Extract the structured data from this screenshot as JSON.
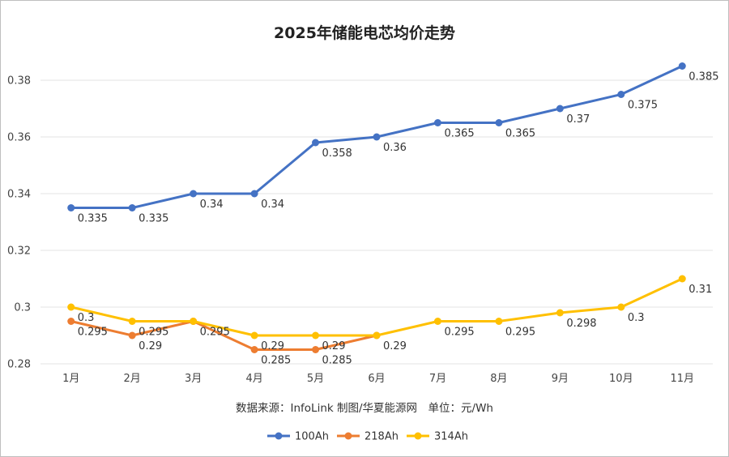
{
  "chart_data": {
    "type": "line",
    "title": "2025年储能电芯均价走势",
    "categories": [
      "1月",
      "2月",
      "3月",
      "4月",
      "5月",
      "6月",
      "7月",
      "8月",
      "9月",
      "10月",
      "11月"
    ],
    "series": [
      {
        "name": "100Ah",
        "color": "#4472C4",
        "values": [
          0.335,
          0.335,
          0.34,
          0.34,
          0.358,
          0.36,
          0.365,
          0.365,
          0.37,
          0.375,
          0.385
        ],
        "labels": [
          "0.335",
          "0.335",
          "0.34",
          "0.34",
          "0.358",
          "0.36",
          "0.365",
          "0.365",
          "0.37",
          "0.375",
          "0.385"
        ]
      },
      {
        "name": "218Ah",
        "color": "#ED7D31",
        "values": [
          0.295,
          0.29,
          0.295,
          0.285,
          0.285,
          0.29,
          null,
          null,
          null,
          null,
          null
        ],
        "labels": [
          "0.295",
          "0.29",
          "",
          "0.285",
          "0.285",
          "",
          "",
          "",
          "",
          "",
          ""
        ]
      },
      {
        "name": "314Ah",
        "color": "#FFC000",
        "values": [
          0.3,
          0.295,
          0.295,
          0.29,
          0.29,
          0.29,
          0.295,
          0.295,
          0.298,
          0.3,
          0.31
        ],
        "labels": [
          "0.3",
          "0.295",
          "0.295",
          "0.29",
          "0.29",
          "0.29",
          "0.295",
          "0.295",
          "0.298",
          "0.3",
          "0.31"
        ]
      }
    ],
    "yticks": [
      "0.28",
      "0.3",
      "0.32",
      "0.34",
      "0.36",
      "0.38"
    ],
    "ylim": [
      0.28,
      0.39
    ],
    "xlabel": "",
    "ylabel": "",
    "grid": true,
    "legend": "bottom",
    "source": "数据来源：InfoLink 制图/华夏能源网　单位：元/Wh"
  }
}
